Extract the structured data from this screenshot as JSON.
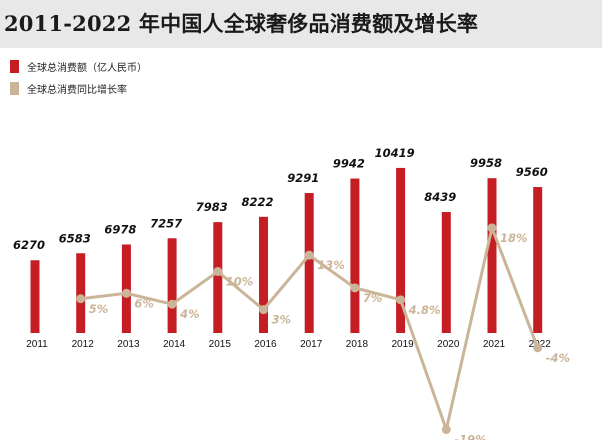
{
  "title": "2011-2022 年中国人全球奢侈品消费额及增长率",
  "colors": {
    "bar": "#c41e24",
    "line": "#cbb598",
    "header_bg": "#e8e8e8"
  },
  "legend": {
    "items": [
      {
        "label": "全球总消费额（亿人民币）",
        "color": "#c41e24"
      },
      {
        "label": "全球总消费同比增长率",
        "color": "#cbb598"
      }
    ]
  },
  "chart_data": {
    "type": "bar",
    "categories": [
      "2011",
      "2012",
      "2013",
      "2014",
      "2015",
      "2016",
      "2017",
      "2018",
      "2019",
      "2020",
      "2021",
      "2022"
    ],
    "series": [
      {
        "name": "全球总消费额（亿人民币）",
        "type": "bar",
        "values": [
          6270,
          6583,
          6978,
          7257,
          7983,
          8222,
          9291,
          9942,
          10419,
          8439,
          9958,
          9560
        ],
        "labels": [
          "6270",
          "6583",
          "6978",
          "7257",
          "7983",
          "8222",
          "9291",
          "9942",
          "10419",
          "8439",
          "9958",
          "9560"
        ]
      },
      {
        "name": "全球总消费同比增长率",
        "type": "line",
        "x": [
          "2012",
          "2013",
          "2014",
          "2015",
          "2016",
          "2017",
          "2018",
          "2019",
          "2020",
          "2021",
          "2022"
        ],
        "values": [
          5,
          6,
          4,
          10,
          3,
          13,
          7,
          4.8,
          -19,
          18,
          -4
        ],
        "labels": [
          "5%",
          "6%",
          "4%",
          "10%",
          "3%",
          "13%",
          "7%",
          "4.8%",
          "-19%",
          "18%",
          "-4%"
        ]
      }
    ]
  }
}
